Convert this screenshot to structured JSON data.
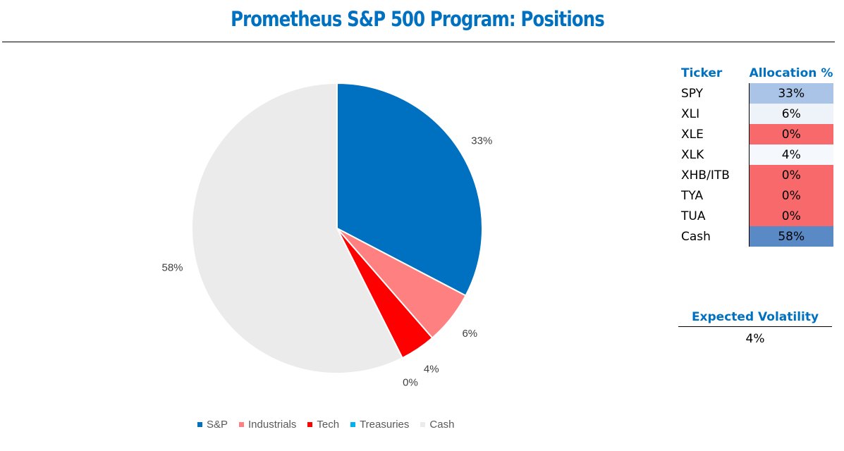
{
  "title": "Prometheus S&P 500 Program: Positions",
  "chart_data": {
    "type": "pie",
    "categories": [
      "S&P",
      "Industrials",
      "Tech",
      "Treasuries",
      "Cash"
    ],
    "values": [
      33,
      6,
      4,
      0,
      58
    ],
    "labels": [
      "33%",
      "6%",
      "4%",
      "0%",
      "58%"
    ],
    "colors": [
      "#0070C0",
      "#FF8080",
      "#FF0000",
      "#00B0F0",
      "#EBEBEB"
    ],
    "legend_position": "bottom"
  },
  "table": {
    "headers": {
      "ticker": "Ticker",
      "allocation": "Allocation %"
    },
    "rows": [
      {
        "ticker": "SPY",
        "allocation": "33%",
        "color": "#A9C4E6"
      },
      {
        "ticker": "XLI",
        "allocation": "6%",
        "color": "#EEF3FA"
      },
      {
        "ticker": "XLE",
        "allocation": "0%",
        "color": "#F8696B"
      },
      {
        "ticker": "XLK",
        "allocation": "4%",
        "color": "#F5F8FC"
      },
      {
        "ticker": "XHB/ITB",
        "allocation": "0%",
        "color": "#F8696B"
      },
      {
        "ticker": "TYA",
        "allocation": "0%",
        "color": "#F8696B"
      },
      {
        "ticker": "TUA",
        "allocation": "0%",
        "color": "#F8696B"
      },
      {
        "ticker": "Cash",
        "allocation": "58%",
        "color": "#5A8AC6"
      }
    ]
  },
  "volatility": {
    "label": "Expected Volatility",
    "value": "4%"
  }
}
